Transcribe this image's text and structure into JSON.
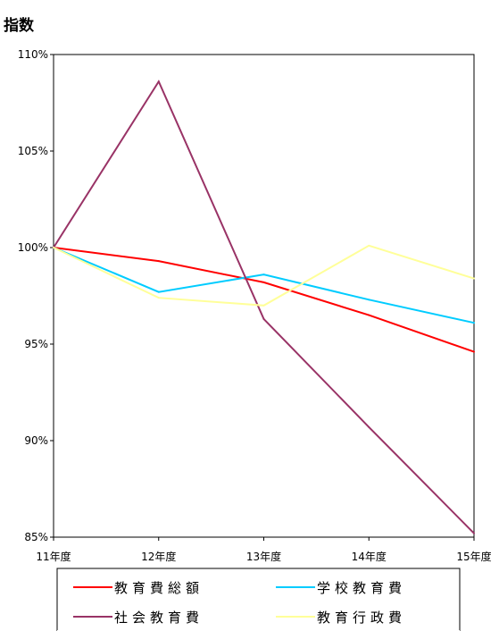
{
  "chart_data": {
    "type": "line",
    "ylabel": "指数",
    "categories": [
      "11年度",
      "12年度",
      "13年度",
      "14年度",
      "15年度"
    ],
    "ylim": [
      85,
      110
    ],
    "yticks": [
      85,
      90,
      95,
      100,
      105,
      110
    ],
    "ytick_labels": [
      "85%",
      "90%",
      "95%",
      "100%",
      "105%",
      "110%"
    ],
    "grid": false,
    "legend_position": "bottom",
    "series": [
      {
        "name": "教育費総額",
        "values": [
          100,
          99.3,
          98.2,
          96.5,
          94.6
        ],
        "color": "#ff0000"
      },
      {
        "name": "学校教育費",
        "values": [
          100,
          97.7,
          98.6,
          97.3,
          96.1
        ],
        "color": "#00ccff"
      },
      {
        "name": "社会教育費",
        "values": [
          100,
          108.6,
          96.3,
          90.7,
          85.2
        ],
        "color": "#993366"
      },
      {
        "name": "教育行政費",
        "values": [
          100,
          97.4,
          97.0,
          100.1,
          98.4
        ],
        "color": "#ffff99"
      }
    ]
  }
}
